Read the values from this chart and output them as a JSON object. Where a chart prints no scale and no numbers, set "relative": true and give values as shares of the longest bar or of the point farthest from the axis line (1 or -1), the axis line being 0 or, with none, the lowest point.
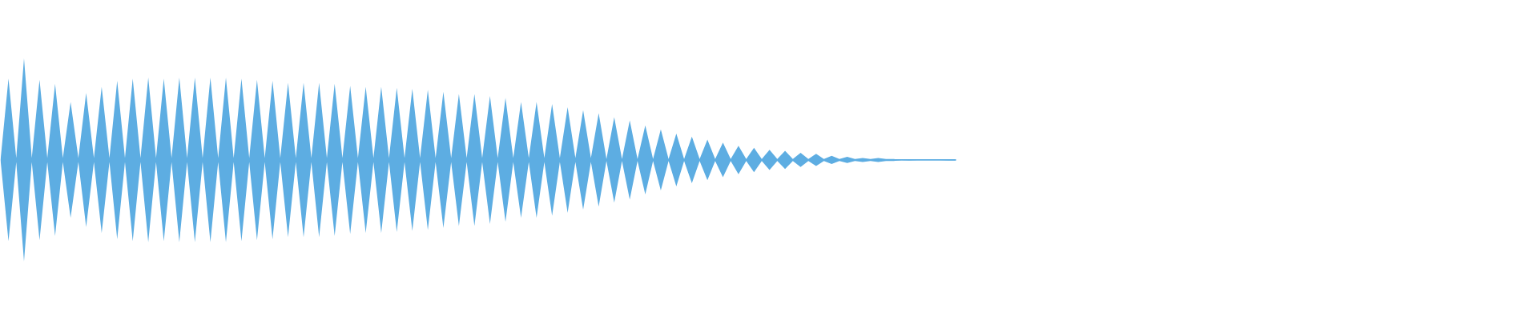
{
  "chart_data": {
    "type": "area",
    "relative": true,
    "categories": [
      null,
      null,
      null,
      null,
      null,
      null,
      null,
      null,
      null,
      null,
      null,
      null,
      null,
      null,
      null,
      null,
      null,
      null,
      null,
      null,
      null,
      null,
      null,
      null,
      null,
      null,
      null,
      null,
      null,
      null,
      null,
      null,
      null,
      null,
      null,
      null,
      null,
      null,
      null,
      null,
      null,
      null,
      null,
      null,
      null,
      null,
      null,
      null,
      null,
      null,
      null,
      null,
      null,
      null,
      null,
      null,
      null,
      null,
      null,
      null,
      null,
      null,
      null,
      null,
      null,
      null,
      null,
      null,
      null,
      null,
      null,
      null,
      null,
      null,
      null,
      null,
      null,
      null,
      null,
      null,
      null,
      null,
      null,
      null,
      null,
      null,
      null,
      null,
      null,
      null,
      null,
      null,
      null,
      null,
      null,
      null,
      null,
      null,
      null,
      null,
      null,
      null,
      null,
      null,
      null,
      null,
      null,
      null,
      null,
      null,
      null,
      null,
      null,
      null,
      null,
      null,
      null,
      null,
      null,
      null,
      null,
      null,
      null,
      null
    ],
    "series": [
      {
        "color": "#5dade2",
        "values": [
          0.02,
          0.8,
          0.02,
          1,
          0.02,
          0.79,
          0.02,
          0.75,
          0.02,
          0.57,
          0.02,
          0.66,
          0.02,
          0.72,
          0.02,
          0.78,
          0.02,
          0.8,
          0.02,
          0.81,
          0.02,
          0.8,
          0.02,
          0.81,
          0.02,
          0.81,
          0.02,
          0.81,
          0.02,
          0.81,
          0.02,
          0.8,
          0.02,
          0.79,
          0.02,
          0.78,
          0.02,
          0.76,
          0.02,
          0.76,
          0.02,
          0.76,
          0.02,
          0.75,
          0.02,
          0.73,
          0.02,
          0.72,
          0.02,
          0.72,
          0.02,
          0.71,
          0.02,
          0.7,
          0.02,
          0.69,
          0.02,
          0.67,
          0.02,
          0.65,
          0.02,
          0.65,
          0.02,
          0.63,
          0.02,
          0.61,
          0.02,
          0.57,
          0.02,
          0.57,
          0.02,
          0.55,
          0.02,
          0.52,
          0.02,
          0.49,
          0.02,
          0.46,
          0.01,
          0.42,
          0.01,
          0.39,
          0.01,
          0.34,
          0.01,
          0.3,
          0.01,
          0.26,
          0.01,
          0.23,
          0.01,
          0.2,
          0.01,
          0.17,
          0.01,
          0.14,
          0.01,
          0.12,
          0.01,
          0.1,
          0.01,
          0.09,
          0.01,
          0.07,
          0.01,
          0.06,
          0.01,
          0.04,
          0.01,
          0.03,
          0.01,
          0.02,
          0.01,
          0.02,
          0.01,
          0.01,
          0,
          0.005,
          0,
          0,
          0,
          0,
          0.005,
          0.005
        ]
      },
      {
        "color": "#5dade2",
        "values": [
          -0.02,
          -0.8,
          -0.02,
          -1,
          -0.02,
          -0.79,
          -0.02,
          -0.75,
          -0.02,
          -0.57,
          -0.02,
          -0.66,
          -0.02,
          -0.72,
          -0.02,
          -0.78,
          -0.02,
          -0.8,
          -0.02,
          -0.81,
          -0.02,
          -0.8,
          -0.02,
          -0.81,
          -0.02,
          -0.81,
          -0.02,
          -0.81,
          -0.02,
          -0.81,
          -0.02,
          -0.8,
          -0.02,
          -0.79,
          -0.02,
          -0.78,
          -0.02,
          -0.76,
          -0.02,
          -0.76,
          -0.02,
          -0.76,
          -0.02,
          -0.75,
          -0.02,
          -0.73,
          -0.02,
          -0.72,
          -0.02,
          -0.72,
          -0.02,
          -0.71,
          -0.02,
          -0.7,
          -0.02,
          -0.69,
          -0.02,
          -0.67,
          -0.02,
          -0.65,
          -0.02,
          -0.65,
          -0.02,
          -0.63,
          -0.02,
          -0.61,
          -0.02,
          -0.57,
          -0.02,
          -0.57,
          -0.02,
          -0.55,
          -0.02,
          -0.52,
          -0.02,
          -0.49,
          -0.02,
          -0.46,
          -0.01,
          -0.42,
          -0.01,
          -0.39,
          -0.01,
          -0.34,
          -0.01,
          -0.3,
          -0.01,
          -0.26,
          -0.01,
          -0.23,
          -0.01,
          -0.2,
          -0.01,
          -0.17,
          -0.01,
          -0.14,
          -0.01,
          -0.12,
          -0.01,
          -0.1,
          -0.01,
          -0.09,
          -0.01,
          -0.07,
          -0.01,
          -0.06,
          -0.01,
          -0.04,
          -0.01,
          -0.03,
          -0.01,
          -0.02,
          -0.01,
          -0.02,
          -0.01,
          -0.01,
          0,
          -0.005,
          0,
          0,
          0,
          0,
          -0.005,
          -0.005
        ]
      }
    ]
  }
}
